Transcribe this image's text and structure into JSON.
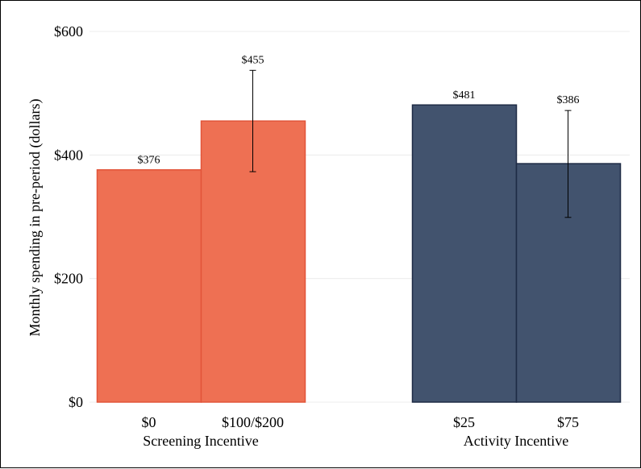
{
  "chart_data": {
    "type": "bar",
    "ylabel": "Monthly spending in pre-period (dollars)",
    "ylim": [
      0,
      600
    ],
    "y_ticks": [
      0,
      200,
      400,
      600
    ],
    "y_tick_labels": [
      "$0",
      "$200",
      "$400",
      "$600"
    ],
    "grid": true,
    "groups": [
      {
        "label": "Screening Incentive",
        "color": "#EE7053",
        "edge_color": "#E2553A",
        "bars": [
          {
            "category": "$0",
            "value": 376,
            "value_label": "$376"
          },
          {
            "category": "$100/$200",
            "value": 455,
            "value_label": "$455",
            "error": [
              373,
              537
            ]
          }
        ]
      },
      {
        "label": "Activity Incentive",
        "color": "#42536E",
        "edge_color": "#1E2B45",
        "bars": [
          {
            "category": "$25",
            "value": 481,
            "value_label": "$481"
          },
          {
            "category": "$75",
            "value": 386,
            "value_label": "$386",
            "error": [
              299,
              472
            ]
          }
        ]
      }
    ]
  }
}
